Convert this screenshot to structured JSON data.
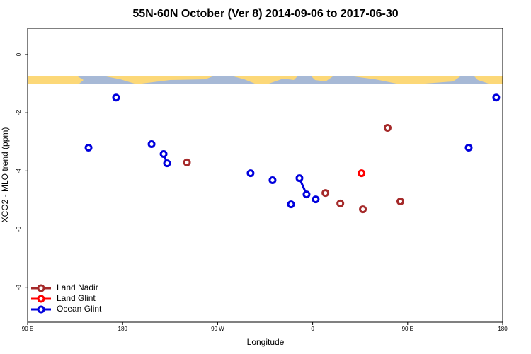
{
  "chart_data": {
    "type": "scatter",
    "title": "55N-60N October (Ver 8)   2014-09-06 to 2017-06-30",
    "x_label": "Longitude",
    "y_label": "XCO2 - MLO trend (ppm)",
    "xlim": [
      90,
      540
    ],
    "xticks": [
      {
        "value": 90,
        "label": "90 E"
      },
      180,
      {
        "value": 270,
        "label": "90 W"
      },
      {
        "value": 360,
        "label": "0"
      },
      {
        "value": 450,
        "label": "90 E"
      },
      {
        "value": 540,
        "label": "180"
      }
    ],
    "ylim": [
      -9.2,
      0.9
    ],
    "yticks": [
      0,
      -2,
      -4,
      -6,
      -8
    ],
    "legend": "bottom-left",
    "series": [
      {
        "name": "Land Nadir",
        "color": "#a52a2a",
        "x": [
          240.9,
          null,
          372.1,
          null,
          386.2,
          null,
          407.6,
          null,
          431.0,
          null,
          443.1
        ],
        "values": [
          -3.71,
          null,
          -4.76,
          null,
          -5.12,
          null,
          -5.32,
          null,
          -2.52,
          null,
          -5.05
        ]
      },
      {
        "name": "Land Glint",
        "color": "#ff0000",
        "x": [
          406.3
        ],
        "values": [
          -4.08
        ]
      },
      {
        "name": "Ocean Glint",
        "color": "#0000dd",
        "x": [
          147.7,
          null,
          173.8,
          null,
          207.4,
          null,
          218.8,
          222.1,
          null,
          301.2,
          null,
          322.0,
          null,
          339.5,
          null,
          347.5,
          354.2,
          null,
          362.9,
          null,
          507.8,
          null,
          533.9
        ],
        "values": [
          -3.2,
          null,
          -1.48,
          null,
          -3.08,
          null,
          -3.42,
          -3.74,
          null,
          -4.08,
          null,
          -4.32,
          null,
          -5.15,
          null,
          -4.25,
          -4.81,
          null,
          -4.98,
          null,
          -3.2,
          null,
          -1.48
        ]
      }
    ]
  }
}
